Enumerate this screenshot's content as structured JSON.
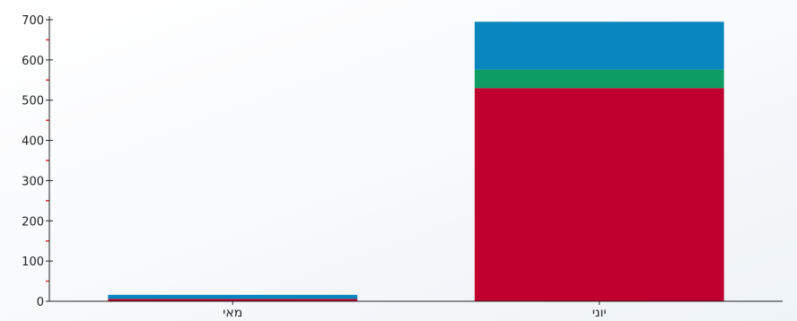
{
  "chart_data": {
    "type": "bar",
    "stacked": true,
    "title": "",
    "xlabel": "",
    "ylabel": "",
    "categories": [
      "מאי",
      "יוני"
    ],
    "series": [
      {
        "color": "#c0002f",
        "values": [
          6,
          530
        ]
      },
      {
        "color": "#0f9d66",
        "values": [
          0,
          46
        ]
      },
      {
        "color": "#0a86bf",
        "values": [
          10,
          119
        ]
      }
    ],
    "ylim": [
      0,
      700
    ],
    "yticks": [
      0,
      100,
      200,
      300,
      400,
      500,
      600,
      700
    ],
    "ytick_labels": [
      "0",
      "100",
      "200",
      "300",
      "400",
      "500",
      "600",
      "700"
    ],
    "grid": false,
    "legend": "none",
    "axis_color": "#222222",
    "minor_tick_color": "#e03030"
  }
}
